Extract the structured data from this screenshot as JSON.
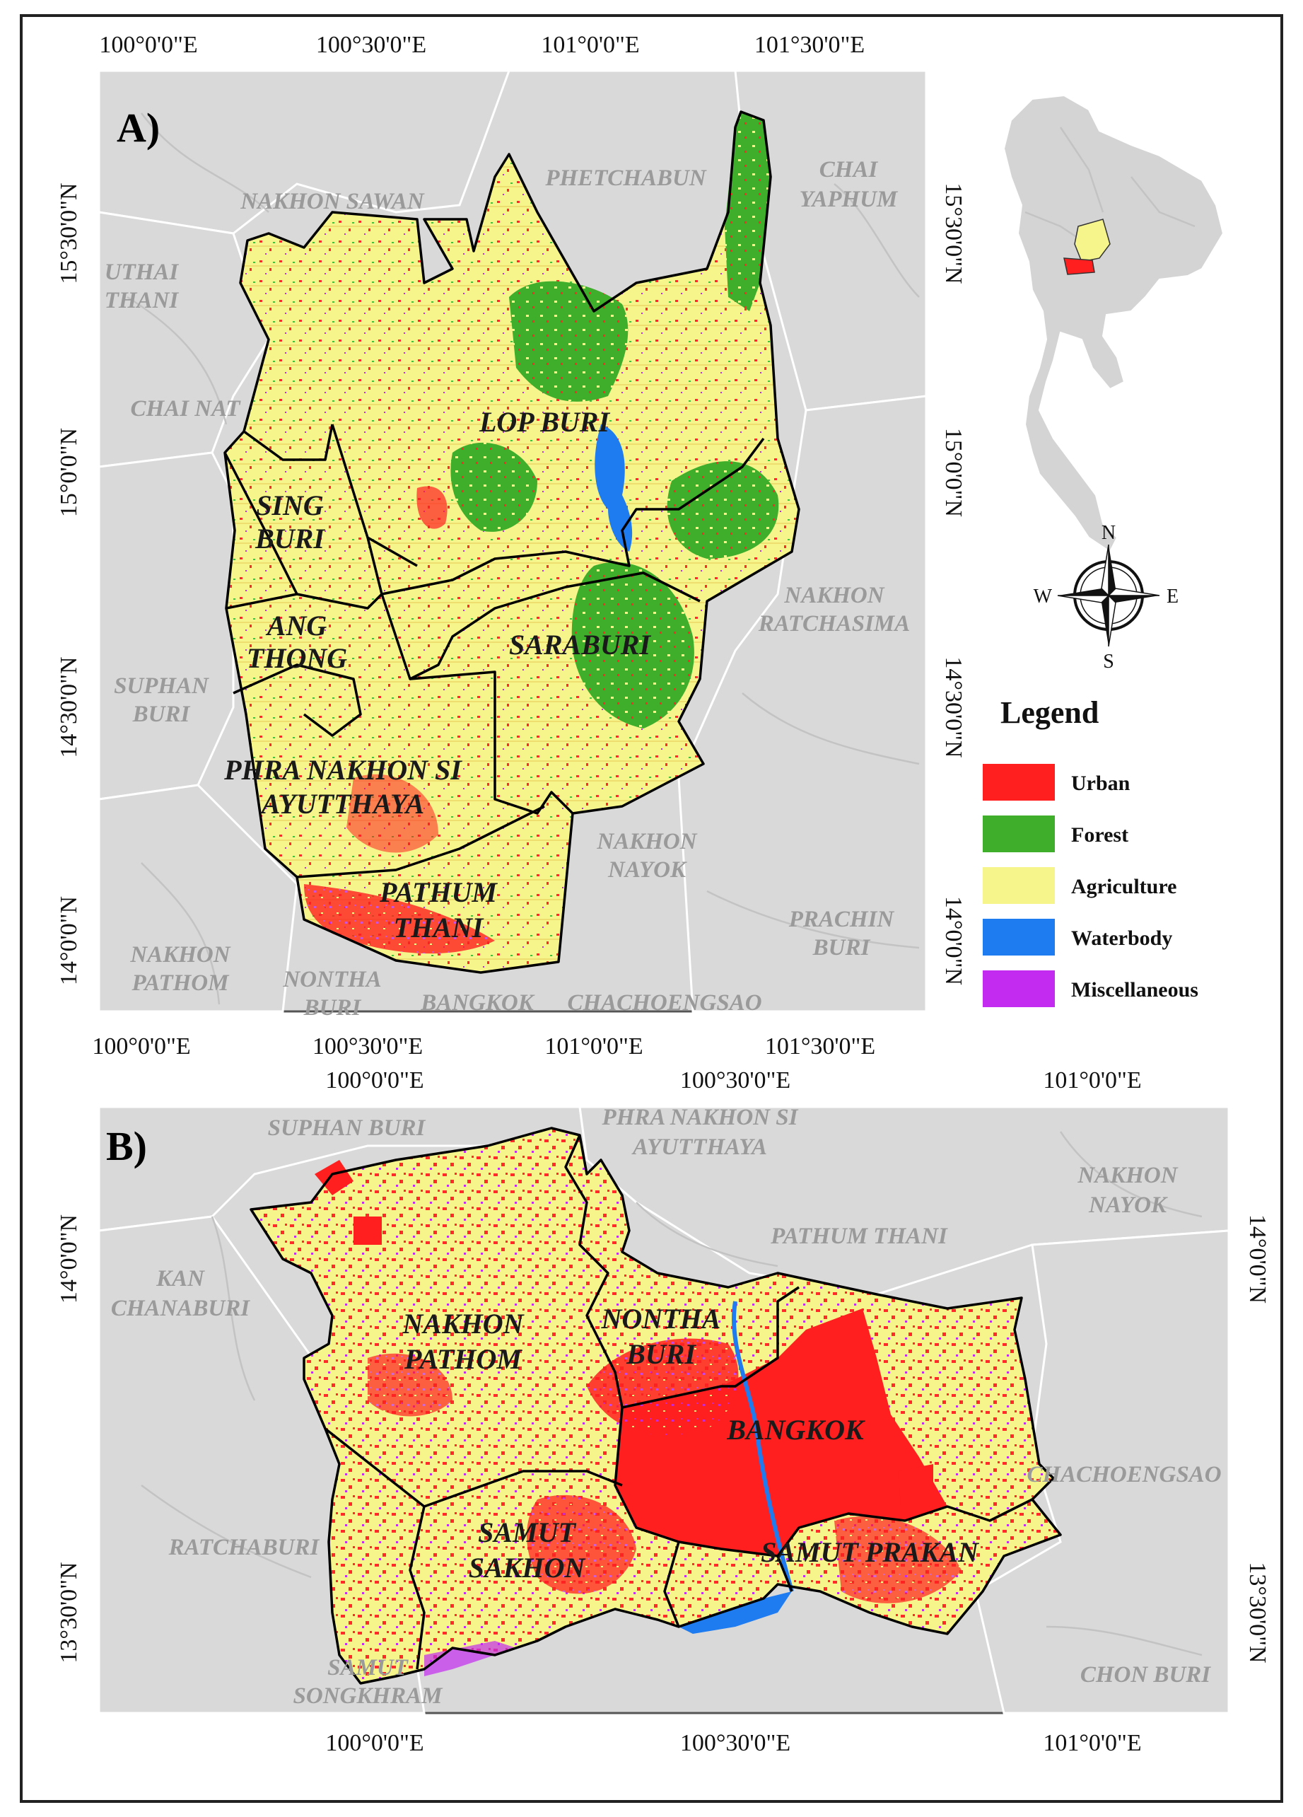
{
  "panels": {
    "a": {
      "label": "A)",
      "top_ticks": [
        "100°0'0\"E",
        "100°30'0\"E",
        "101°0'0\"E",
        "101°30'0\"E"
      ],
      "bottom_ticks": [
        "100°0'0\"E",
        "100°30'0\"E",
        "101°0'0\"E",
        "101°30'0\"E"
      ],
      "left_ticks": [
        "15°30'0\"N",
        "15°0'0\"N",
        "14°30'0\"N",
        "14°0'0\"N"
      ],
      "right_ticks": [
        "15°30'0\"N",
        "15°0'0\"N",
        "14°30'0\"N",
        "14°0'0\"N"
      ],
      "outer_labels": {
        "nakhon_sawan": "NAKHON SAWAN",
        "phetchabun": "PHETCHABUN",
        "chai_yaphum_1": "CHAI",
        "chai_yaphum_2": "YAPHUM",
        "uthai_thani_1": "UTHAI",
        "uthai_thani_2": "THANI",
        "chai_nat": "CHAI NAT",
        "suphan_buri_1": "SUPHAN",
        "suphan_buri_2": "BURI",
        "nakhon_ratchasima_1": "NAKHON",
        "nakhon_ratchasima_2": "RATCHASIMA",
        "nakhon_nayok_1": "NAKHON",
        "nakhon_nayok_2": "NAYOK",
        "prachin_buri_1": "PRACHIN",
        "prachin_buri_2": "BURI",
        "nakhon_pathom_1": "NAKHON",
        "nakhon_pathom_2": "PATHOM",
        "nonthaburi_1": "NONTHA",
        "nonthaburi_2": "BURI",
        "bangkok": "BANGKOK",
        "chachoengsao": "CHACHOENGSAO"
      },
      "inner_labels": {
        "lop_buri": "LOP BURI",
        "sing_buri_1": "SING",
        "sing_buri_2": "BURI",
        "ang_thong_1": "ANG",
        "ang_thong_2": "THONG",
        "saraburi": "SARABURI",
        "ayutthaya_1": "PHRA NAKHON SI",
        "ayutthaya_2": "AYUTTHAYA",
        "pathum_thani_1": "PATHUM",
        "pathum_thani_2": "THANI"
      }
    },
    "b": {
      "label": "B)",
      "top_ticks": [
        "100°0'0\"E",
        "100°30'0\"E",
        "101°0'0\"E"
      ],
      "bottom_ticks": [
        "100°0'0\"E",
        "100°30'0\"E",
        "101°0'0\"E"
      ],
      "left_ticks": [
        "14°0'0\"N",
        "13°30'0\"N"
      ],
      "right_ticks": [
        "14°0'0\"N",
        "13°30'0\"N"
      ],
      "outer_labels": {
        "suphan_buri": "SUPHAN BURI",
        "ayutthaya_1": "PHRA NAKHON SI",
        "ayutthaya_2": "AYUTTHAYA",
        "nakhon_nayok_1": "NAKHON",
        "nakhon_nayok_2": "NAYOK",
        "pathum_thani": "PATHUM THANI",
        "kanchanaburi_1": "KAN",
        "kanchanaburi_2": "CHANABURI",
        "chachoengsao": "CHACHOENGSAO",
        "ratchaburi": "RATCHABURI",
        "samut_songkhram_1": "SAMUT",
        "samut_songkhram_2": "SONGKHRAM",
        "chon_buri": "CHON BURI"
      },
      "inner_labels": {
        "nakhon_pathom_1": "NAKHON",
        "nakhon_pathom_2": "PATHOM",
        "nonthaburi_1": "NONTHA",
        "nonthaburi_2": "BURI",
        "bangkok": "BANGKOK",
        "samut_sakhon_1": "SAMUT",
        "samut_sakhon_2": "SAKHON",
        "samut_prakan": "SAMUT PRAKAN"
      }
    }
  },
  "legend": {
    "title": "Legend",
    "items": [
      {
        "label": "Urban",
        "color": "#ff1f1f"
      },
      {
        "label": "Forest",
        "color": "#3fae2a"
      },
      {
        "label": "Agriculture",
        "color": "#f6f58c"
      },
      {
        "label": "Waterbody",
        "color": "#1f7cf0"
      },
      {
        "label": "Miscellaneous",
        "color": "#c32bf0"
      }
    ]
  },
  "compass": {
    "n": "N",
    "s": "S",
    "e": "E",
    "w": "W"
  },
  "colors": {
    "background_land": "#d9d9d9",
    "province_line": "#000000",
    "locator_highlight_a": "#f6f58c",
    "locator_highlight_b": "#ff1f1f"
  }
}
